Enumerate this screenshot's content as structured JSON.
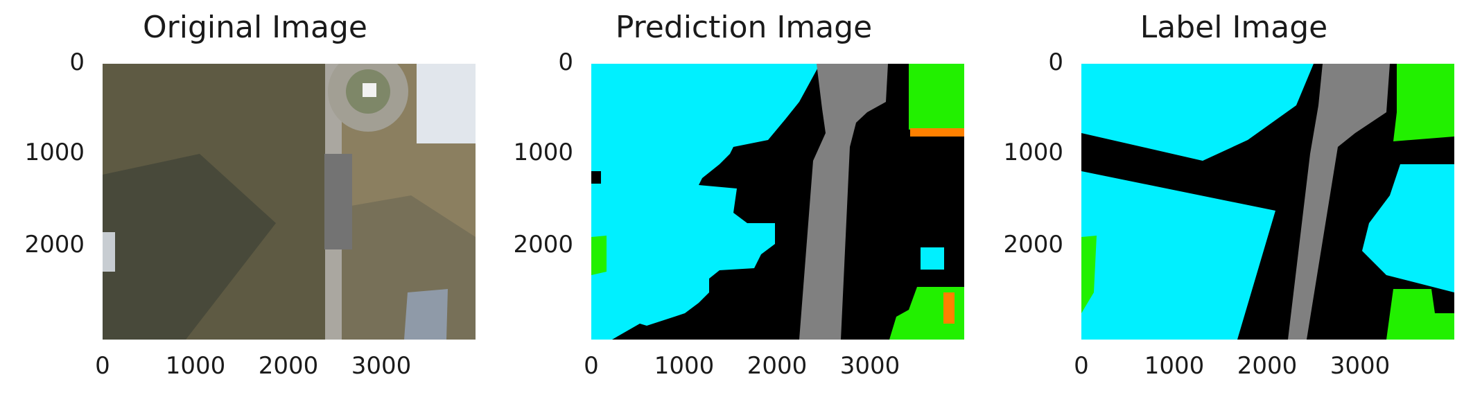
{
  "panels": [
    {
      "title": "Original Image",
      "kind": "photo"
    },
    {
      "title": "Prediction Image",
      "kind": "segmentation"
    },
    {
      "title": "Label Image",
      "kind": "segmentation"
    }
  ],
  "axes": {
    "y_ticks": [
      "0",
      "1000",
      "2000"
    ],
    "x_ticks": [
      "0",
      "1000",
      "2000",
      "3000"
    ],
    "xlim": [
      0,
      4000
    ],
    "ylim": [
      3000,
      0
    ]
  },
  "legend_colors": {
    "cyan": "#00f0ff",
    "black": "#000000",
    "gray": "#808080",
    "green": "#22f000",
    "orange": "#ff8000"
  }
}
